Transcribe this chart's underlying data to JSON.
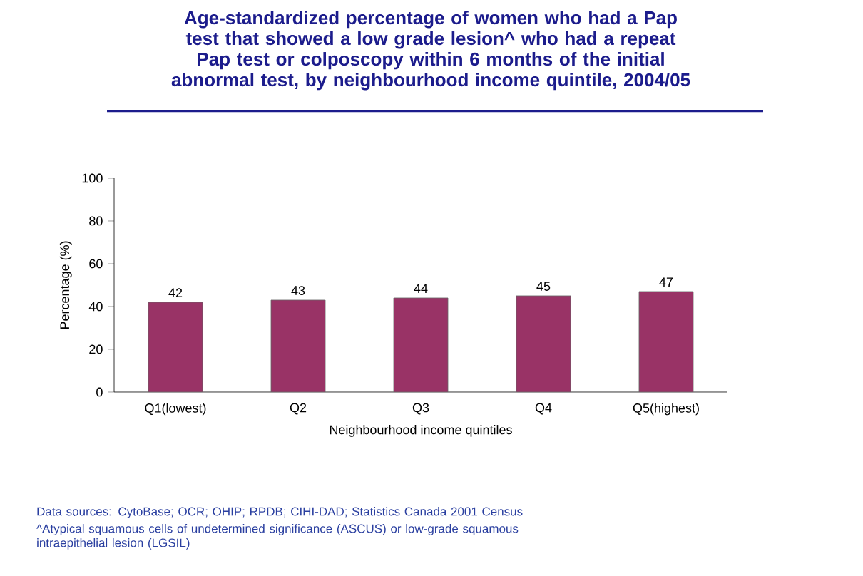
{
  "chart_data": {
    "type": "bar",
    "title": "Age-standardized percentage of women who had a Pap test that showed a low grade lesion^ who had a repeat Pap test or colposcopy within 6 months of the initial abnormal test, by neighbourhood income quintile, 2004/05",
    "categories": [
      "Q1(lowest)",
      "Q2",
      "Q3",
      "Q4",
      "Q5(highest)"
    ],
    "values": [
      42,
      43,
      44,
      45,
      47
    ],
    "color": "#993366",
    "data_labels": true,
    "xlabel": "Neighbourhood income quintiles",
    "ylabel": "Percentage (%)",
    "ylim": [
      0,
      100
    ],
    "yticks": [
      0,
      20,
      40,
      60,
      80,
      100
    ],
    "annotations": [
      "Data sources:  CytoBase; OCR; OHIP; RPDB; CIHI-DAD; Statistics Canada 2001 Census",
      "^Atypical squamous cells of undetermined significance (ASCUS) or low-grade squamous intraepithelial lesion (LGSIL)"
    ]
  }
}
